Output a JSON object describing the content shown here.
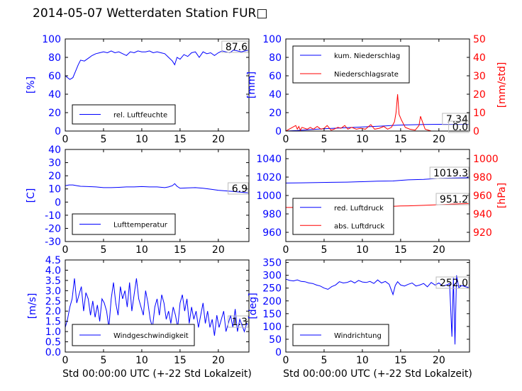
{
  "title": "2014-05-07 Wetterdaten Station FUR",
  "title_glyph": "□",
  "colors": {
    "primary": "#0000ff",
    "secondary": "#ff0000",
    "axis": "#000000"
  },
  "chart_data": [
    {
      "type": "line",
      "panel": "humidity",
      "xlim": [
        0,
        24
      ],
      "ylim": [
        0,
        100
      ],
      "xticks": [
        0,
        5,
        10,
        15,
        20
      ],
      "yticks": [
        0,
        20,
        40,
        60,
        80,
        100
      ],
      "ylabel": "[%]",
      "xlabel": "",
      "value_label": "87.6",
      "legend_placement": "lower-left",
      "series": [
        {
          "name": "rel. Luftfeuchte",
          "color": "#0000ff",
          "x": [
            0,
            0.3,
            0.6,
            1,
            1.4,
            1.7,
            2,
            2.5,
            3,
            3.5,
            4,
            4.5,
            5,
            5.5,
            6,
            6.5,
            7,
            7.5,
            8,
            8.5,
            9,
            9.5,
            10,
            10.5,
            11,
            11.5,
            12,
            12.5,
            13,
            13.5,
            14,
            14.3,
            14.6,
            15,
            15.5,
            16,
            16.5,
            17,
            17.5,
            18,
            18.5,
            19,
            19.5,
            20,
            20.5,
            21,
            21.5,
            22,
            22.5,
            23,
            23.5,
            24
          ],
          "values": [
            60,
            58,
            56,
            58,
            66,
            72,
            77,
            76,
            79,
            82,
            84,
            85,
            86,
            85,
            87,
            85,
            86,
            84,
            82,
            86,
            85,
            87,
            86,
            86,
            87,
            85,
            86,
            85,
            84,
            80,
            76,
            72,
            80,
            78,
            83,
            81,
            85,
            86,
            80,
            86,
            84,
            85,
            82,
            85,
            87,
            86,
            85,
            88,
            87,
            86,
            87,
            88
          ]
        }
      ]
    },
    {
      "type": "line",
      "panel": "precipitation",
      "xlim": [
        0,
        24
      ],
      "ylim": [
        0,
        100
      ],
      "y2lim": [
        0,
        50
      ],
      "xticks": [
        0,
        5,
        10,
        15,
        20
      ],
      "yticks": [
        0,
        20,
        40,
        60,
        80,
        100
      ],
      "y2ticks": [
        0,
        10,
        20,
        30,
        40,
        50
      ],
      "ylabel": "[mm]",
      "y2label": "[mm/std]",
      "xlabel": "",
      "value_label": "7.34",
      "value_label_2": "0.0",
      "legend_placement": "upper-left",
      "series": [
        {
          "name": "kum. Niederschlag",
          "color": "#0000ff",
          "axis": "left",
          "x": [
            0,
            1.5,
            3,
            5,
            7,
            9,
            11,
            13,
            14.5,
            16,
            18,
            20,
            22,
            24
          ],
          "values": [
            0,
            0.5,
            1.5,
            2.5,
            3.3,
            4,
            4.8,
            5.5,
            6.4,
            6.8,
            7.1,
            7.3,
            7.34,
            7.34
          ]
        },
        {
          "name": "Niederschlagsrate",
          "color": "#ff0000",
          "axis": "right",
          "x": [
            0,
            1.3,
            1.5,
            1.7,
            1.9,
            2.1,
            2.8,
            3.2,
            3.6,
            4.1,
            4.6,
            5.0,
            5.4,
            5.9,
            6.3,
            6.8,
            7.2,
            7.7,
            8.1,
            8.6,
            9.2,
            9.8,
            10.4,
            11.1,
            11.6,
            12.2,
            12.8,
            13.3,
            13.8,
            14.2,
            14.4,
            14.6,
            14.8,
            15.1,
            15.6,
            16.2,
            16.9,
            17.4,
            17.6,
            18.2,
            19,
            20,
            21,
            22,
            23,
            24
          ],
          "values": [
            0,
            3,
            1,
            2.5,
            0.5,
            2,
            1,
            2,
            1,
            2.5,
            1,
            1.5,
            3,
            0.5,
            1,
            2,
            1.5,
            3,
            1,
            2,
            1,
            1.5,
            1,
            3.5,
            1,
            1.5,
            2.5,
            1,
            2,
            5,
            10,
            20,
            9,
            6,
            2,
            1,
            0.5,
            3,
            8,
            1,
            0,
            0,
            0,
            0,
            0,
            0
          ]
        }
      ]
    },
    {
      "type": "line",
      "panel": "temperature",
      "xlim": [
        0,
        24
      ],
      "ylim": [
        -30,
        40
      ],
      "xticks": [
        0,
        5,
        10,
        15,
        20
      ],
      "yticks": [
        -30,
        -20,
        -10,
        0,
        10,
        20,
        30,
        40
      ],
      "ylabel": "[C]",
      "xlabel": "",
      "value_label": "6.9",
      "legend_placement": "lower-left",
      "series": [
        {
          "name": "Lufttemperatur",
          "color": "#0000ff",
          "x": [
            0,
            0.5,
            1,
            1.5,
            2,
            3,
            4,
            5,
            6,
            7,
            8,
            9,
            10,
            11,
            12,
            13,
            13.5,
            14,
            14.3,
            14.6,
            15,
            16,
            17,
            18,
            19,
            20,
            21,
            22,
            23,
            24
          ],
          "values": [
            12.5,
            13,
            13,
            12.5,
            12,
            11.8,
            11.5,
            11,
            11,
            11.2,
            11.5,
            11.5,
            11.8,
            11.5,
            11.5,
            11,
            11.5,
            12.5,
            14,
            12,
            10.5,
            10.8,
            11,
            10.5,
            9.8,
            9,
            8.5,
            8,
            7.5,
            7
          ]
        }
      ]
    },
    {
      "type": "line",
      "panel": "pressure",
      "xlim": [
        0,
        24
      ],
      "ylim": [
        950,
        1050
      ],
      "y2lim": [
        910,
        1010
      ],
      "xticks": [
        0,
        5,
        10,
        15,
        20
      ],
      "yticks": [
        960,
        980,
        1000,
        1020,
        1040
      ],
      "y2ticks": [
        920,
        940,
        960,
        980,
        1000
      ],
      "ylabel": "",
      "y2label": "[hPa]",
      "xlabel": "",
      "value_label": "1019.3",
      "value_label_2": "951.2",
      "legend_placement": "lower-left",
      "series": [
        {
          "name": "red. Luftdruck",
          "color": "#0000ff",
          "axis": "left",
          "x": [
            0,
            2,
            4,
            6,
            8,
            10,
            12,
            14,
            15,
            16,
            18,
            20,
            22,
            24
          ],
          "values": [
            1013.5,
            1013.8,
            1014,
            1014.3,
            1014.5,
            1015,
            1015.5,
            1015.8,
            1016.5,
            1017,
            1017.5,
            1018.5,
            1019,
            1019.3
          ]
        },
        {
          "name": "abs. Luftdruck",
          "color": "#ff0000",
          "axis": "right",
          "x": [
            0,
            2,
            4,
            6,
            8,
            10,
            12,
            14,
            15,
            16,
            18,
            20,
            22,
            24
          ],
          "values": [
            947,
            947,
            947.2,
            947.3,
            947.5,
            947.8,
            948,
            948.3,
            948.6,
            948.8,
            949.3,
            950,
            950.8,
            951.2
          ]
        }
      ]
    },
    {
      "type": "line",
      "panel": "wind_speed",
      "xlim": [
        0,
        24
      ],
      "ylim": [
        0,
        4.5
      ],
      "xticks": [
        0,
        5,
        10,
        15,
        20
      ],
      "yticks": [
        0,
        0.5,
        1,
        1.5,
        2,
        2.5,
        3,
        3.5,
        4,
        4.5
      ],
      "ylabel": "[m/s]",
      "xlabel": "Std 00:00:00 UTC (+-22 Std Lokalzeit)",
      "value_label": "1.3",
      "legend_placement": "lower-left",
      "series": [
        {
          "name": "Windgeschwindigkeit",
          "color": "#0000ff",
          "x": [
            0,
            0.3,
            0.6,
            0.9,
            1.2,
            1.5,
            1.8,
            2.1,
            2.4,
            2.7,
            3,
            3.3,
            3.6,
            3.9,
            4.2,
            4.5,
            4.8,
            5.1,
            5.4,
            5.7,
            6,
            6.3,
            6.6,
            6.9,
            7.2,
            7.5,
            7.8,
            8.1,
            8.4,
            8.7,
            9,
            9.3,
            9.6,
            9.9,
            10.2,
            10.5,
            10.8,
            11.1,
            11.4,
            11.7,
            12,
            12.3,
            12.6,
            12.9,
            13.2,
            13.5,
            13.8,
            14.1,
            14.4,
            14.7,
            15,
            15.3,
            15.6,
            15.9,
            16.2,
            16.5,
            16.8,
            17.1,
            17.4,
            17.7,
            18,
            18.3,
            18.6,
            18.9,
            19.2,
            19.5,
            19.8,
            20.1,
            20.4,
            20.7,
            21,
            21.3,
            21.6,
            21.9,
            22.2,
            22.5,
            22.8,
            23.1,
            23.4,
            23.7,
            24
          ],
          "values": [
            1.2,
            1.6,
            2.2,
            2.6,
            3.6,
            2.4,
            2.8,
            3.2,
            2.0,
            2.9,
            2.6,
            1.8,
            2.5,
            1.7,
            2.3,
            1.5,
            2.6,
            2.4,
            2.0,
            1.2,
            2.6,
            3.4,
            2.4,
            1.8,
            3.2,
            2.6,
            3.0,
            2.2,
            3.4,
            2.0,
            2.8,
            3.6,
            2.6,
            2.2,
            1.8,
            3.0,
            2.4,
            1.6,
            1.2,
            2.2,
            2.6,
            1.8,
            2.8,
            2.4,
            1.6,
            2.0,
            1.4,
            2.2,
            1.8,
            1.2,
            2.4,
            2.8,
            2.0,
            2.6,
            1.4,
            2.2,
            1.6,
            2.0,
            1.2,
            1.8,
            2.4,
            1.4,
            2.0,
            1.2,
            1.6,
            0.8,
            1.8,
            1.2,
            1.6,
            2.0,
            1.0,
            1.4,
            1.8,
            1.2,
            2.1,
            1.0,
            1.6,
            1.3,
            1.0,
            1.4,
            1.3
          ]
        }
      ]
    },
    {
      "type": "line",
      "panel": "wind_direction",
      "xlim": [
        0,
        24
      ],
      "ylim": [
        0,
        360
      ],
      "xticks": [
        0,
        5,
        10,
        15,
        20
      ],
      "yticks": [
        0,
        50,
        100,
        150,
        200,
        250,
        300,
        350
      ],
      "ylabel": "[deg]",
      "xlabel": "Std 00:00:00 UTC (+-22 Std Lokalzeit)",
      "value_label": "252.0",
      "legend_placement": "lower-left",
      "series": [
        {
          "name": "Windrichtung",
          "color": "#0000ff",
          "x": [
            0,
            0.5,
            1,
            1.5,
            2,
            2.5,
            3,
            3.5,
            4,
            4.5,
            5,
            5.5,
            6,
            6.5,
            7,
            7.5,
            8,
            8.5,
            9,
            9.5,
            10,
            10.5,
            11,
            11.5,
            12,
            12.5,
            13,
            13.5,
            14,
            14.3,
            14.6,
            15,
            15.5,
            16,
            16.5,
            17,
            17.5,
            18,
            18.5,
            19,
            19.5,
            20,
            20.5,
            21,
            21.4,
            21.7,
            21.9,
            22.1,
            22.3,
            22.6,
            23,
            23.5,
            24
          ],
          "values": [
            285,
            280,
            278,
            282,
            276,
            275,
            270,
            268,
            262,
            258,
            250,
            245,
            256,
            262,
            275,
            270,
            272,
            278,
            270,
            280,
            274,
            272,
            276,
            268,
            282,
            270,
            276,
            265,
            225,
            260,
            275,
            262,
            258,
            265,
            270,
            258,
            262,
            268,
            255,
            272,
            262,
            270,
            258,
            262,
            268,
            60,
            290,
            30,
            300,
            252,
            260,
            255,
            252
          ]
        }
      ]
    }
  ]
}
